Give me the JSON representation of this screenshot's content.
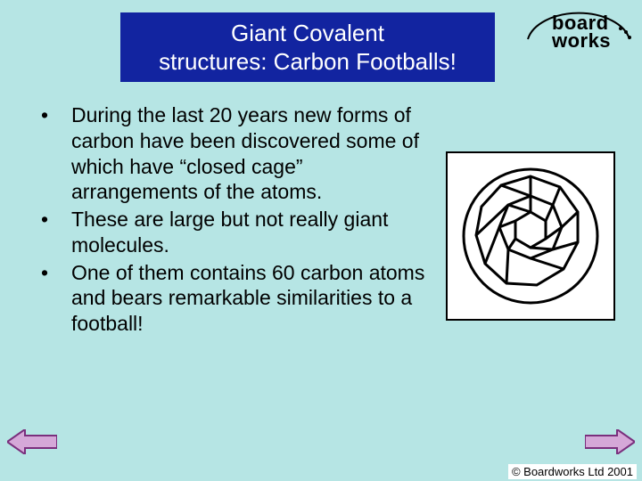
{
  "colors": {
    "slide_bg": "#b6e5e4",
    "title_bg": "#1224a0",
    "title_text": "#ffffff",
    "body_text": "#000000",
    "arrow_fill": "#d5a8d8",
    "arrow_stroke": "#7a2f7d",
    "molecule_bg": "#ffffff",
    "molecule_border": "#000000"
  },
  "title": {
    "line1": "Giant Covalent",
    "line2": "structures: Carbon Footballs!",
    "fontsize": 26
  },
  "logo": {
    "top": "board",
    "bottom": "works"
  },
  "bullets": [
    "During the last 20 years new forms of carbon have been discovered some of which have “closed cage” arrangements of the atoms.",
    "These are large but not really giant molecules.",
    "One of them contains 60 carbon atoms and bears remarkable similarities to a football!"
  ],
  "body_fontsize": 23,
  "copyright": "© Boardworks Ltd 2001",
  "nav": {
    "prev": "previous-slide",
    "next": "next-slide"
  }
}
